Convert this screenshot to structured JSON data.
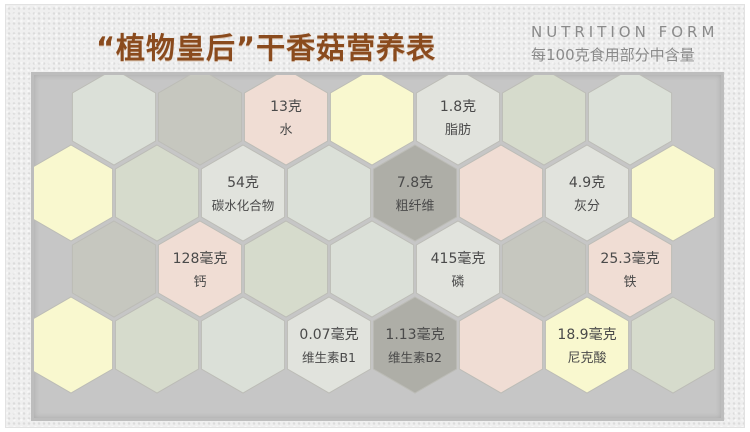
{
  "title": "“植物皇后”干香菇营养表",
  "subtitle_en": "NUTRITION FORM",
  "subtitle_cn": "每100克食用部分中含量",
  "colors": {
    "light": "#dbe0d8",
    "gray": "#c6c7bf",
    "pink": "#f0ddd4",
    "yellow": "#f9f8cf",
    "sage": "#d6dbcc",
    "dark": "#aeaea7",
    "pale": "#e1e3dd"
  },
  "rows": [
    [
      {
        "color": "light"
      },
      {
        "color": "gray"
      },
      {
        "color": "pink",
        "value": "13克",
        "name": "水"
      },
      {
        "color": "yellow"
      },
      {
        "color": "pale",
        "value": "1.8克",
        "name": "脂肪"
      },
      {
        "color": "sage"
      },
      {
        "color": "light"
      }
    ],
    [
      {
        "color": "yellow"
      },
      {
        "color": "sage"
      },
      {
        "color": "pale",
        "value": "54克",
        "name": "碳水化合物"
      },
      {
        "color": "light"
      },
      {
        "color": "dark",
        "value": "7.8克",
        "name": "粗纤维"
      },
      {
        "color": "pink"
      },
      {
        "color": "pale",
        "value": "4.9克",
        "name": "灰分"
      },
      {
        "color": "yellow"
      }
    ],
    [
      {
        "color": "gray"
      },
      {
        "color": "pink",
        "value": "128毫克",
        "name": "钙"
      },
      {
        "color": "sage"
      },
      {
        "color": "light"
      },
      {
        "color": "pale",
        "value": "415毫克",
        "name": "磷"
      },
      {
        "color": "gray"
      },
      {
        "color": "pink",
        "value": "25.3毫克",
        "name": "铁"
      }
    ],
    [
      {
        "color": "yellow"
      },
      {
        "color": "sage"
      },
      {
        "color": "light"
      },
      {
        "color": "pale",
        "value": "0.07毫克",
        "name": "维生素B1"
      },
      {
        "color": "dark",
        "value": "1.13毫克",
        "name": "维生素B2"
      },
      {
        "color": "pink"
      },
      {
        "color": "yellow",
        "value": "18.9毫克",
        "name": "尼克酸"
      },
      {
        "color": "sage"
      }
    ]
  ]
}
